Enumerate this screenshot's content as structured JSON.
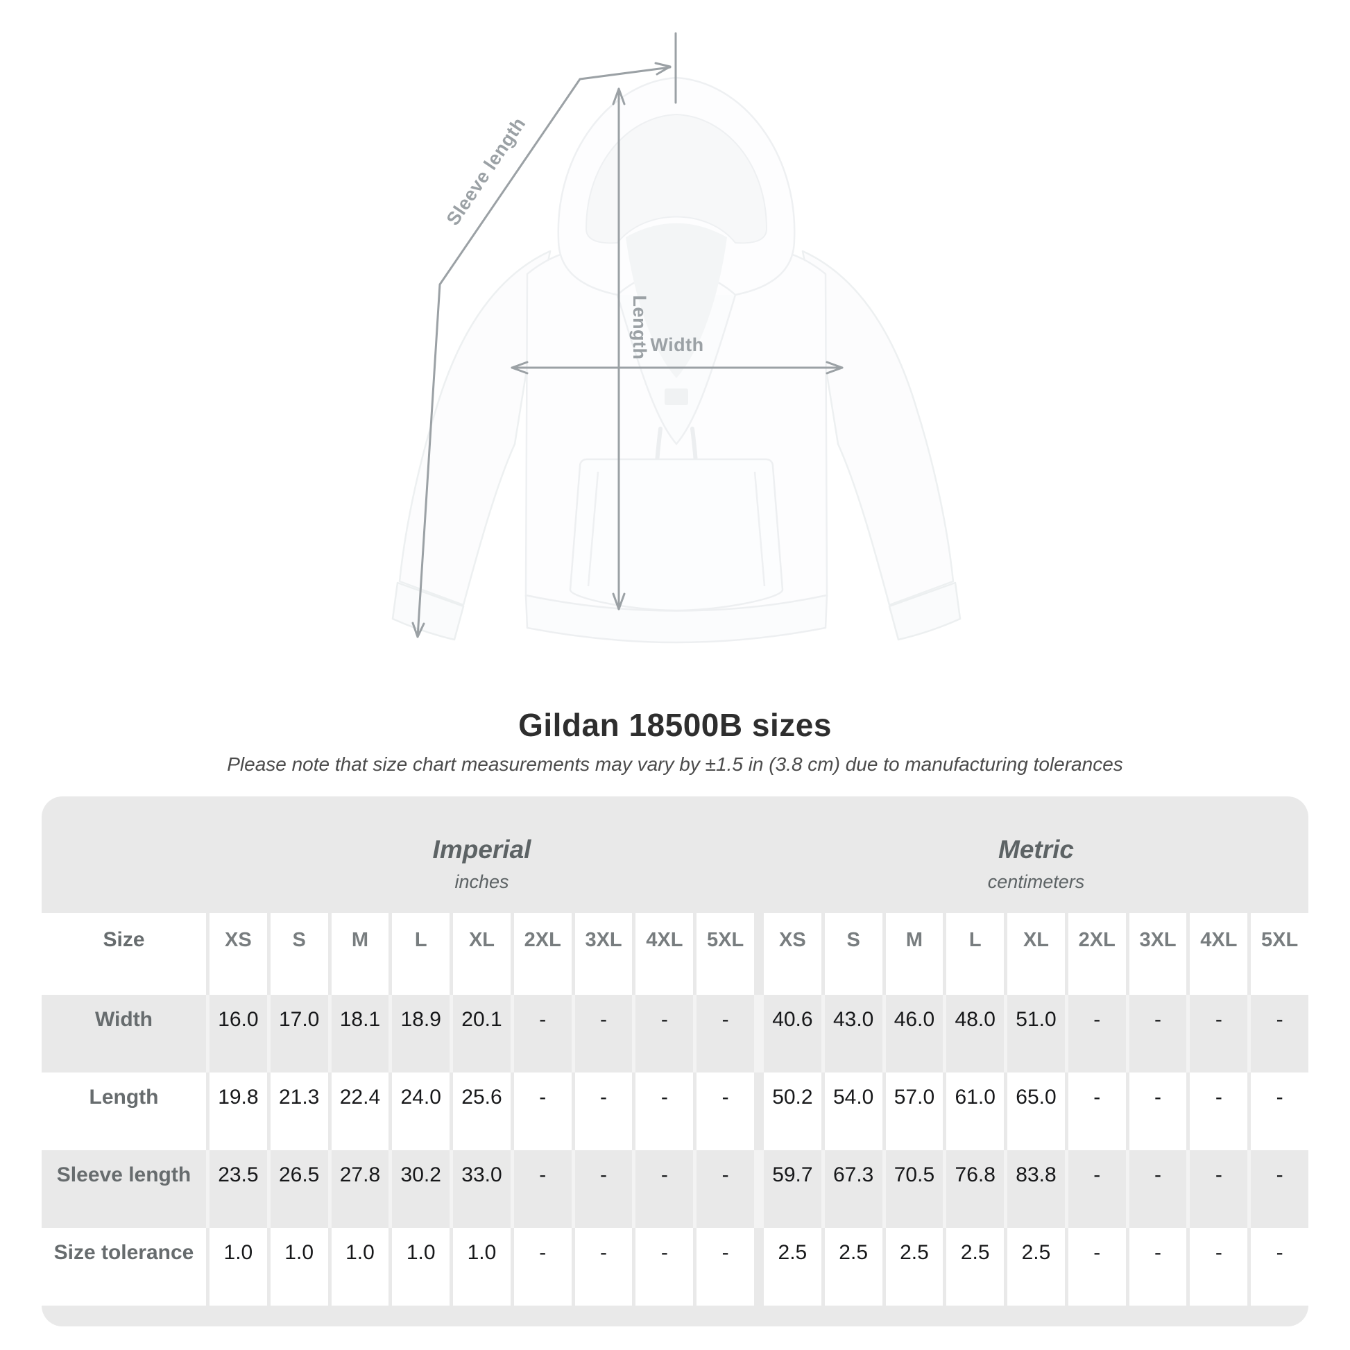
{
  "figure": {
    "sleeve_label": "Sleeve length",
    "length_label": "Length",
    "width_label": "Width"
  },
  "title": "Gildan 18500B sizes",
  "note": "Please note that size chart measurements may vary by ±1.5 in (3.8 cm) due to manufacturing tolerances",
  "colors": {
    "table_background": "#e9e9e9",
    "value_text": "#17181a",
    "muted_header_text": "#787d7f",
    "arrow_gray": "#9ba1a5"
  },
  "chart_data": {
    "type": "table",
    "title": "Gildan 18500B sizes",
    "note": "Please note that size chart measurements may vary by ±1.5 in (3.8 cm) due to manufacturing tolerances",
    "size_header": "Size",
    "sizes": [
      "XS",
      "S",
      "M",
      "L",
      "XL",
      "2XL",
      "3XL",
      "4XL",
      "5XL"
    ],
    "sections": [
      {
        "name": "Imperial",
        "unit": "inches"
      },
      {
        "name": "Metric",
        "unit": "centimeters"
      }
    ],
    "rows": [
      {
        "label": "Width",
        "imperial": [
          "16.0",
          "17.0",
          "18.1",
          "18.9",
          "20.1",
          "-",
          "-",
          "-",
          "-"
        ],
        "metric": [
          "40.6",
          "43.0",
          "46.0",
          "48.0",
          "51.0",
          "-",
          "-",
          "-",
          "-"
        ]
      },
      {
        "label": "Length",
        "imperial": [
          "19.8",
          "21.3",
          "22.4",
          "24.0",
          "25.6",
          "-",
          "-",
          "-",
          "-"
        ],
        "metric": [
          "50.2",
          "54.0",
          "57.0",
          "61.0",
          "65.0",
          "-",
          "-",
          "-",
          "-"
        ]
      },
      {
        "label": "Sleeve length",
        "imperial": [
          "23.5",
          "26.5",
          "27.8",
          "30.2",
          "33.0",
          "-",
          "-",
          "-",
          "-"
        ],
        "metric": [
          "59.7",
          "67.3",
          "70.5",
          "76.8",
          "83.8",
          "-",
          "-",
          "-",
          "-"
        ]
      },
      {
        "label": "Size tolerance",
        "imperial": [
          "1.0",
          "1.0",
          "1.0",
          "1.0",
          "1.0",
          "-",
          "-",
          "-",
          "-"
        ],
        "metric": [
          "2.5",
          "2.5",
          "2.5",
          "2.5",
          "2.5",
          "-",
          "-",
          "-",
          "-"
        ]
      }
    ]
  }
}
